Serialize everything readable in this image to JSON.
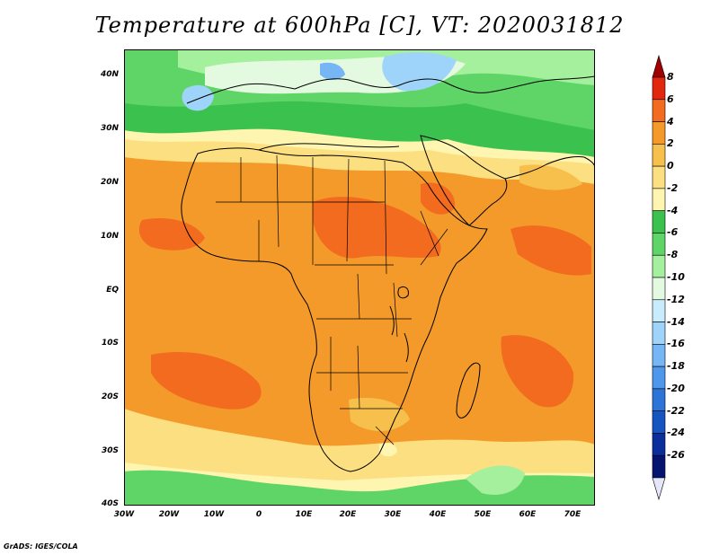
{
  "title": "Temperature at 600hPa [C], VT: 2020031812",
  "footer": "GrADS: IGES/COLA",
  "lat_labels": [
    "40N",
    "30N",
    "20N",
    "10N",
    "EQ",
    "10S",
    "20S",
    "30S",
    "40S"
  ],
  "lon_labels": [
    "30W",
    "20W",
    "10W",
    "0",
    "10E",
    "20E",
    "30E",
    "40E",
    "50E",
    "60E",
    "70E"
  ],
  "colorbar": {
    "labels": [
      "8",
      "6",
      "4",
      "2",
      "0",
      "-2",
      "-4",
      "-6",
      "-8",
      "-10",
      "-12",
      "-14",
      "-16",
      "-18",
      "-20",
      "-22",
      "-24",
      "-26"
    ],
    "colors": [
      "#a00000",
      "#e1280e",
      "#f36b1e",
      "#f39a2a",
      "#f7c04c",
      "#fcdf80",
      "#fef6b0",
      "#3bc24e",
      "#5fd467",
      "#a4f09c",
      "#e3fae0",
      "#c8ecfc",
      "#9fd4fa",
      "#76b6f4",
      "#4e97ea",
      "#2c74d8",
      "#1654c0",
      "#0a2f9c",
      "#05146e",
      "#e6e6fa"
    ]
  },
  "extent": {
    "lon_range": [
      -30,
      75
    ],
    "lat_range": [
      -40,
      45
    ]
  }
}
